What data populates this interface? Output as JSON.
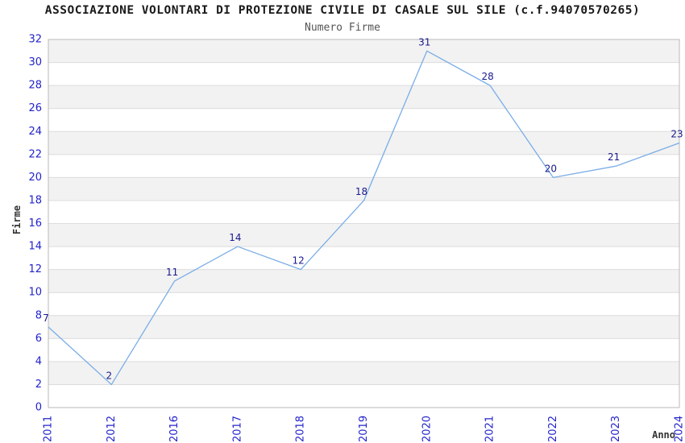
{
  "chart_data": {
    "type": "line",
    "title": "ASSOCIAZIONE VOLONTARI DI PROTEZIONE CIVILE DI CASALE SUL SILE (c.f.94070570265)",
    "subtitle": "Numero Firme",
    "xlabel": "Anno",
    "ylabel": "Firme",
    "categories": [
      "2011",
      "2012",
      "2016",
      "2017",
      "2018",
      "2019",
      "2020",
      "2021",
      "2022",
      "2023",
      "2024"
    ],
    "values": [
      7,
      2,
      11,
      14,
      12,
      18,
      31,
      28,
      20,
      21,
      23
    ],
    "ylim": [
      0,
      32
    ],
    "ytick_step": 2,
    "grid": "horizontal",
    "banded_background": true,
    "legend": "none",
    "data_labels": true,
    "colors": {
      "line": "#7aade6",
      "point_label": "#19198c",
      "tick_label": "#2323cc",
      "axis_title": "#333333",
      "title": "#1a1a1a",
      "subtitle": "#555555",
      "band": "#f2f2f2",
      "gridline": "#dcdcdc",
      "plot_border": "#b9b9b9",
      "background": "#ffffff"
    }
  }
}
